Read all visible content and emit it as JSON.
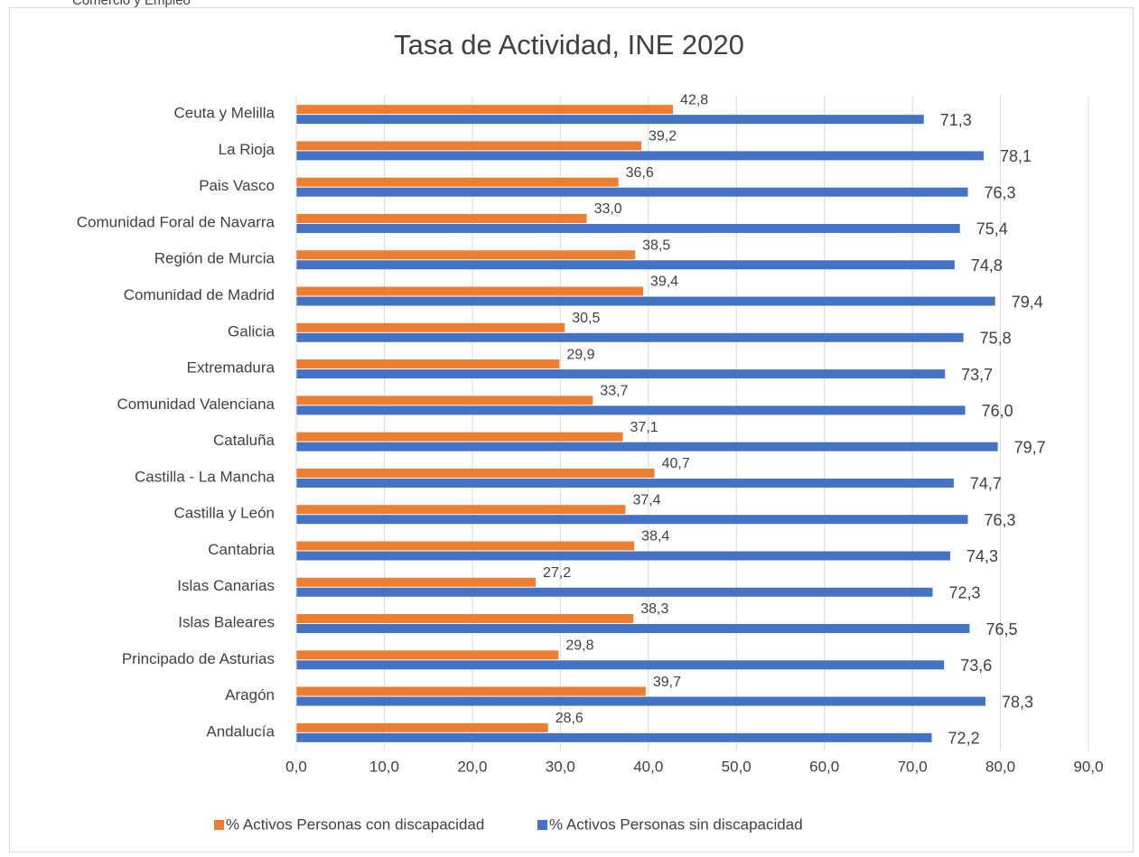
{
  "header_text": "Comercio y Empleo",
  "chart_data": {
    "type": "barh",
    "title": "Tasa de Actividad, INE 2020",
    "categories": [
      "Ceuta y Melilla",
      "La Rioja",
      "Pais Vasco",
      "Comunidad Foral de Navarra",
      "Región de Murcia",
      "Comunidad de Madrid",
      "Galicia",
      "Extremadura",
      "Comunidad Valenciana",
      "Cataluña",
      "Castilla - La Mancha",
      "Castilla y León",
      "Cantabria",
      "Islas Canarias",
      "Islas Baleares",
      "Principado de Asturias",
      "Aragón",
      "Andalucía"
    ],
    "series": [
      {
        "name": "% Activos Personas con discapacidad",
        "color": "#ed7d31",
        "values": [
          42.8,
          39.2,
          36.6,
          33.0,
          38.5,
          39.4,
          30.5,
          29.9,
          33.7,
          37.1,
          40.7,
          37.4,
          38.4,
          27.2,
          38.3,
          29.8,
          39.7,
          28.6
        ],
        "value_labels": [
          "42,8",
          "39,2",
          "36,6",
          "33,0",
          "38,5",
          "39,4",
          "30,5",
          "29,9",
          "33,7",
          "37,1",
          "40,7",
          "37,4",
          "38,4",
          "27,2",
          "38,3",
          "29,8",
          "39,7",
          "28,6"
        ]
      },
      {
        "name": "% Activos Personas sin discapacidad",
        "color": "#4472c4",
        "values": [
          71.3,
          78.1,
          76.3,
          75.4,
          74.8,
          79.4,
          75.8,
          73.7,
          76.0,
          79.7,
          74.7,
          76.3,
          74.3,
          72.3,
          76.5,
          73.6,
          78.3,
          72.2
        ],
        "value_labels": [
          "71,3",
          "78,1",
          "76,3",
          "75,4",
          "74,8",
          "79,4",
          "75,8",
          "73,7",
          "76,0",
          "79,7",
          "74,7",
          "76,3",
          "74,3",
          "72,3",
          "76,5",
          "73,6",
          "78,3",
          "72,2"
        ]
      }
    ],
    "xlim": [
      0,
      90
    ],
    "xticks": [
      {
        "value": 0,
        "label": "0,0"
      },
      {
        "value": 10,
        "label": "10,0"
      },
      {
        "value": 20,
        "label": "20,0"
      },
      {
        "value": 30,
        "label": "30,0"
      },
      {
        "value": 40,
        "label": "40,0"
      },
      {
        "value": 50,
        "label": "50,0"
      },
      {
        "value": 60,
        "label": "60,0"
      },
      {
        "value": 70,
        "label": "70,0"
      },
      {
        "value": 80,
        "label": "80,0"
      },
      {
        "value": 90,
        "label": "90,0"
      }
    ],
    "grid": true,
    "legend": "bottom"
  }
}
